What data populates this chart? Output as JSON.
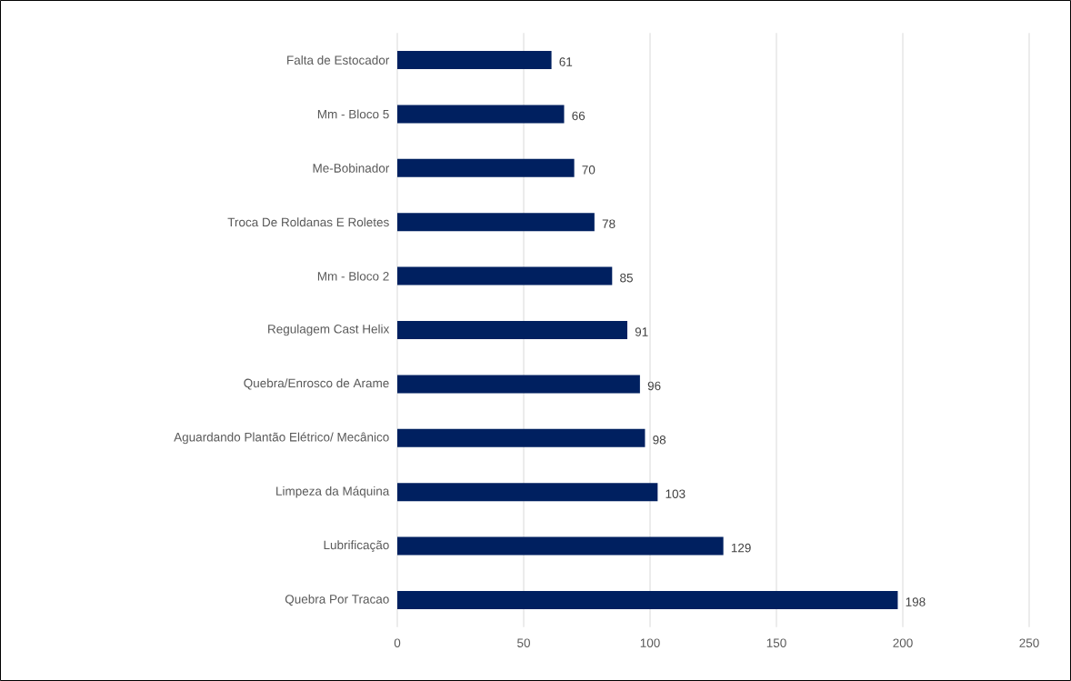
{
  "chart_data": {
    "type": "bar",
    "orientation": "horizontal",
    "categories": [
      "Falta de Estocador",
      "Mm - Bloco 5",
      "Me-Bobinador",
      "Troca De Roldanas E Roletes",
      "Mm - Bloco 2",
      "Regulagem Cast Helix",
      "Quebra/Enrosco de Arame",
      "Aguardando Plantão Elétrico/ Mecânico",
      "Limpeza da Máquina",
      "Lubrificação",
      "Quebra Por Tracao"
    ],
    "values": [
      61,
      66,
      70,
      78,
      85,
      91,
      96,
      98,
      103,
      129,
      198
    ],
    "color": "#002060",
    "xlim": [
      0,
      250
    ],
    "xticks": [
      0,
      50,
      100,
      150,
      200,
      250
    ],
    "grid": "x",
    "data_labels": true
  }
}
